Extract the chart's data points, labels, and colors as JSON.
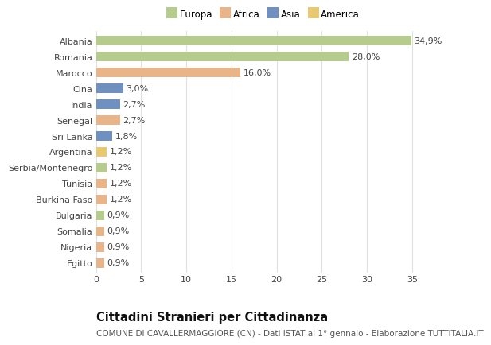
{
  "categories": [
    "Albania",
    "Romania",
    "Marocco",
    "Cina",
    "India",
    "Senegal",
    "Sri Lanka",
    "Argentina",
    "Serbia/Montenegro",
    "Tunisia",
    "Burkina Faso",
    "Bulgaria",
    "Somalia",
    "Nigeria",
    "Egitto"
  ],
  "values": [
    34.9,
    28.0,
    16.0,
    3.0,
    2.7,
    2.7,
    1.8,
    1.2,
    1.2,
    1.2,
    1.2,
    0.9,
    0.9,
    0.9,
    0.9
  ],
  "labels": [
    "34,9%",
    "28,0%",
    "16,0%",
    "3,0%",
    "2,7%",
    "2,7%",
    "1,8%",
    "1,2%",
    "1,2%",
    "1,2%",
    "1,2%",
    "0,9%",
    "0,9%",
    "0,9%",
    "0,9%"
  ],
  "colors": [
    "#b5cc8e",
    "#b5cc8e",
    "#e8b48a",
    "#7090bf",
    "#7090bf",
    "#e8b48a",
    "#7090bf",
    "#e8c870",
    "#b5cc8e",
    "#e8b48a",
    "#e8b48a",
    "#b5cc8e",
    "#e8b48a",
    "#e8b48a",
    "#e8b48a"
  ],
  "legend_labels": [
    "Europa",
    "Africa",
    "Asia",
    "America"
  ],
  "legend_colors": [
    "#b5cc8e",
    "#e8b48a",
    "#7090bf",
    "#e8c870"
  ],
  "title": "Cittadini Stranieri per Cittadinanza",
  "subtitle": "COMUNE DI CAVALLERMAGGIORE (CN) - Dati ISTAT al 1° gennaio - Elaborazione TUTTITALIA.IT",
  "xlim": [
    0,
    37
  ],
  "xticks": [
    0,
    5,
    10,
    15,
    20,
    25,
    30,
    35
  ],
  "fig_bg_color": "#ffffff",
  "plot_bg_color": "#ffffff",
  "grid_color": "#e0e0e0",
  "bar_height": 0.6,
  "label_fontsize": 8.0,
  "title_fontsize": 10.5,
  "subtitle_fontsize": 7.5,
  "legend_fontsize": 8.5
}
